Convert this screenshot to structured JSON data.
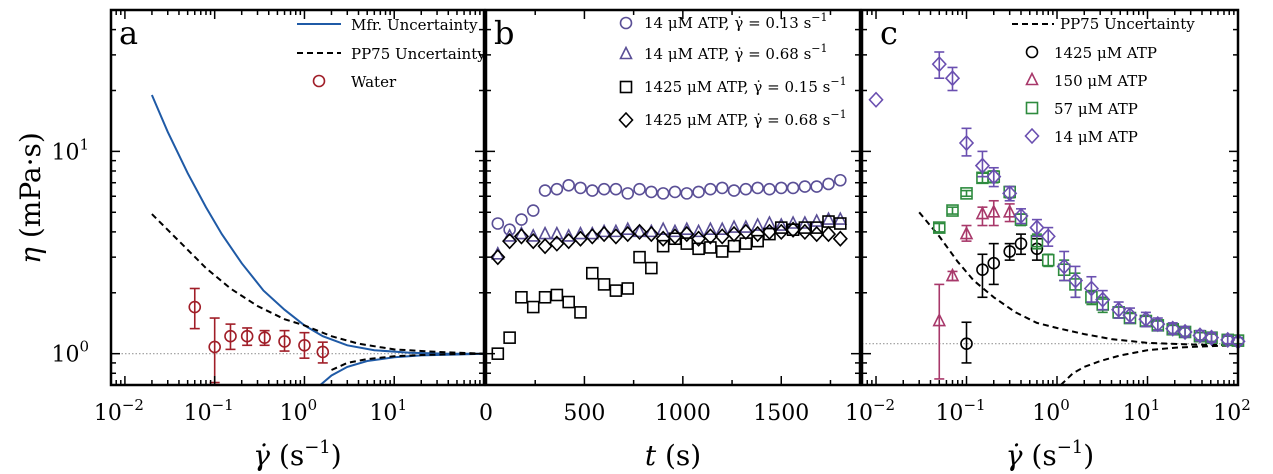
{
  "colors": {
    "water": "#a01e28",
    "mfr": "#1f5aa6",
    "black": "#000000",
    "purple": "#5a4f96",
    "magenta": "#a8386a",
    "green": "#2e8b3e",
    "violet": "#6a4fb0",
    "grey": "#9a9a9a"
  },
  "ylabel_parts": {
    "sym": "η",
    "unit": "(mPa·s)"
  },
  "ytick_labels": [
    {
      "base": "10",
      "exp": "0",
      "value": 1
    },
    {
      "base": "10",
      "exp": "1",
      "value": 10
    }
  ],
  "chart_data": [
    {
      "type": "scatter",
      "panel": "a",
      "xscale": "log",
      "yscale": "log",
      "xlim": [
        0.007,
        100
      ],
      "ylim": [
        0.7,
        50
      ],
      "xlabel_parts": {
        "sym": "γ̇",
        "unit": "(s",
        "exp": "−1",
        "close": ")"
      },
      "xtick_labels": [
        {
          "base": "10",
          "exp": "−2",
          "value": 0.01
        },
        {
          "base": "10",
          "exp": "−1",
          "value": 0.1
        },
        {
          "base": "10",
          "exp": "0",
          "value": 1
        },
        {
          "base": "10",
          "exp": "1",
          "value": 10
        }
      ],
      "legend": [
        "Mfr. Uncertainty",
        "PP75 Uncertainty",
        "Water"
      ],
      "series": [
        {
          "name": "Water",
          "marker": "circle",
          "x": [
            0.06,
            0.1,
            0.15,
            0.23,
            0.36,
            0.6,
            1.0,
            1.6
          ],
          "y": [
            1.7,
            1.08,
            1.22,
            1.22,
            1.2,
            1.15,
            1.1,
            1.02
          ],
          "ylo": [
            1.33,
            0.72,
            1.05,
            1.1,
            1.1,
            1.03,
            0.95,
            0.9
          ],
          "yhi": [
            2.1,
            1.5,
            1.4,
            1.34,
            1.3,
            1.3,
            1.27,
            1.14
          ]
        }
      ],
      "mfr_upper": {
        "x": [
          0.02,
          0.03,
          0.05,
          0.08,
          0.12,
          0.2,
          0.35,
          0.6,
          1.0,
          1.6,
          3,
          6,
          15,
          40,
          100
        ],
        "y": [
          19,
          12.5,
          7.8,
          5.3,
          3.9,
          2.8,
          2.05,
          1.65,
          1.38,
          1.22,
          1.1,
          1.04,
          1.01,
          1.0,
          1.0
        ]
      },
      "mfr_lower": {
        "x": [
          1.5,
          2,
          3,
          5,
          10,
          20,
          50,
          100
        ],
        "y": [
          0.7,
          0.78,
          0.86,
          0.92,
          0.96,
          0.98,
          0.99,
          1.0
        ]
      },
      "pp75_upper": {
        "x": [
          0.02,
          0.04,
          0.08,
          0.15,
          0.3,
          0.6,
          1.0,
          2,
          4,
          10,
          30,
          100
        ],
        "y": [
          4.9,
          3.6,
          2.65,
          2.1,
          1.72,
          1.48,
          1.38,
          1.22,
          1.12,
          1.05,
          1.02,
          1.0
        ]
      },
      "pp75_lower": {
        "x": [
          2,
          3,
          5,
          10,
          20,
          50,
          100
        ],
        "y": [
          0.83,
          0.9,
          0.94,
          0.97,
          0.985,
          0.995,
          1.0
        ]
      },
      "ref_y": 1.0
    },
    {
      "type": "scatter",
      "panel": "b",
      "xscale": "linear",
      "yscale": "log",
      "xlim": [
        0,
        1900
      ],
      "ylim": [
        0.7,
        50
      ],
      "xlabel_parts": {
        "sym": "t",
        "unit": "(s)"
      },
      "xtick_labels": [
        "0",
        "500",
        "1000",
        "1500"
      ],
      "xtick_values": [
        0,
        500,
        1000,
        1500
      ],
      "legend": [
        {
          "text": "14 μM ATP, γ̇ = 0.13 s",
          "sup": "−1"
        },
        {
          "text": "14 μM ATP, γ̇ = 0.68 s",
          "sup": "−1"
        },
        {
          "text": "1425 μM ATP, γ̇ = 0.15 s",
          "sup": "−1"
        },
        {
          "text": "1425 μM ATP, γ̇ = 0.68 s",
          "sup": "−1"
        }
      ],
      "series": [
        {
          "name": "14 μM ATP, γ̇ = 0.13 s−1",
          "marker": "circle",
          "x": [
            60,
            120,
            180,
            240,
            300,
            360,
            420,
            480,
            540,
            600,
            660,
            720,
            780,
            840,
            900,
            960,
            1020,
            1080,
            1140,
            1200,
            1260,
            1320,
            1380,
            1440,
            1500,
            1560,
            1620,
            1680,
            1740,
            1800
          ],
          "y": [
            4.4,
            4.1,
            4.6,
            5.1,
            6.4,
            6.5,
            6.8,
            6.6,
            6.4,
            6.5,
            6.5,
            6.2,
            6.5,
            6.3,
            6.2,
            6.3,
            6.2,
            6.3,
            6.5,
            6.6,
            6.4,
            6.5,
            6.6,
            6.5,
            6.6,
            6.6,
            6.7,
            6.7,
            6.9,
            7.2
          ]
        },
        {
          "name": "14 μM ATP, γ̇ = 0.68 s−1",
          "marker": "triangle",
          "x": [
            60,
            120,
            180,
            240,
            300,
            360,
            420,
            480,
            540,
            600,
            660,
            720,
            780,
            840,
            900,
            960,
            1020,
            1080,
            1140,
            1200,
            1260,
            1320,
            1380,
            1440,
            1500,
            1560,
            1620,
            1680,
            1740,
            1800
          ],
          "y": [
            3.1,
            3.8,
            3.9,
            3.8,
            3.9,
            3.9,
            3.8,
            3.9,
            3.9,
            4.0,
            4.0,
            4.1,
            4.0,
            4.0,
            4.1,
            4.0,
            4.1,
            4.0,
            4.1,
            4.1,
            4.2,
            4.2,
            4.3,
            4.4,
            4.3,
            4.4,
            4.4,
            4.5,
            4.6,
            4.6
          ]
        },
        {
          "name": "1425 μM ATP, γ̇ = 0.15 s−1",
          "marker": "square",
          "x": [
            60,
            120,
            180,
            240,
            300,
            360,
            420,
            480,
            540,
            600,
            660,
            720,
            780,
            840,
            900,
            960,
            1020,
            1080,
            1140,
            1200,
            1260,
            1320,
            1380,
            1440,
            1500,
            1560,
            1620,
            1680,
            1740,
            1800
          ],
          "y": [
            1.0,
            1.2,
            1.9,
            1.7,
            1.9,
            1.95,
            1.8,
            1.6,
            2.5,
            2.2,
            2.05,
            2.1,
            3.0,
            2.65,
            3.4,
            3.7,
            3.5,
            3.3,
            3.35,
            3.2,
            3.4,
            3.5,
            3.6,
            3.9,
            4.2,
            4.1,
            4.2,
            4.2,
            4.5,
            4.4
          ]
        },
        {
          "name": "1425 μM ATP, γ̇ = 0.68 s−1",
          "marker": "diamond",
          "x": [
            60,
            120,
            180,
            240,
            300,
            360,
            420,
            480,
            540,
            600,
            660,
            720,
            780,
            840,
            900,
            960,
            1020,
            1080,
            1140,
            1200,
            1260,
            1320,
            1380,
            1440,
            1500,
            1560,
            1620,
            1680,
            1740,
            1800
          ],
          "y": [
            3.0,
            3.6,
            3.8,
            3.6,
            3.4,
            3.5,
            3.6,
            3.7,
            3.8,
            3.9,
            3.8,
            3.9,
            4.0,
            3.9,
            3.7,
            3.8,
            3.9,
            3.7,
            3.8,
            3.8,
            3.9,
            4.0,
            3.9,
            4.0,
            4.0,
            4.1,
            4.0,
            3.9,
            3.9,
            3.7
          ]
        }
      ]
    },
    {
      "type": "scatter",
      "panel": "c",
      "xscale": "log",
      "yscale": "log",
      "xlim": [
        0.007,
        100
      ],
      "ylim": [
        0.7,
        50
      ],
      "xlabel_parts": {
        "sym": "γ̇",
        "unit": "(s",
        "exp": "−1",
        "close": ")"
      },
      "xtick_labels": [
        {
          "base": "10",
          "exp": "−2",
          "value": 0.01
        },
        {
          "base": "10",
          "exp": "−1",
          "value": 0.1
        },
        {
          "base": "10",
          "exp": "0",
          "value": 1
        },
        {
          "base": "10",
          "exp": "1",
          "value": 10
        },
        {
          "base": "10",
          "exp": "2",
          "value": 100
        }
      ],
      "legend": [
        "PP75 Uncertainty",
        "1425 μM ATP",
        "150 μM ATP",
        "57 μM ATP",
        "14 μM ATP"
      ],
      "series": [
        {
          "name": "1425 μM ATP",
          "marker": "circle",
          "x": [
            0.1,
            0.15,
            0.2,
            0.3,
            0.4,
            0.6
          ],
          "y": [
            1.12,
            2.6,
            2.8,
            3.2,
            3.5,
            3.3
          ],
          "ylo": [
            0.9,
            1.9,
            2.2,
            2.9,
            3.1,
            2.9
          ],
          "yhi": [
            1.43,
            3.1,
            3.5,
            3.5,
            3.9,
            3.7
          ]
        },
        {
          "name": "150 μM ATP",
          "marker": "triangle",
          "x": [
            0.05,
            0.07,
            0.1,
            0.15,
            0.2,
            0.3
          ],
          "y": [
            1.45,
            2.42,
            3.9,
            4.9,
            5.0,
            5.0
          ],
          "ylo": [
            0.75,
            2.3,
            3.6,
            4.3,
            4.3,
            4.5
          ],
          "yhi": [
            2.2,
            2.55,
            4.3,
            5.3,
            5.7,
            5.5
          ]
        },
        {
          "name": "57 μM ATP",
          "marker": "square",
          "x": [
            0.05,
            0.07,
            0.1,
            0.15,
            0.2,
            0.3,
            0.4,
            0.6,
            0.8,
            1.2,
            1.6,
            2.4,
            3.2,
            4.8,
            6.4,
            9.6,
            13,
            19,
            26,
            38,
            51,
            77,
            100
          ],
          "y": [
            4.2,
            5.1,
            6.2,
            7.4,
            7.5,
            6.3,
            4.6,
            3.6,
            2.9,
            2.6,
            2.2,
            1.9,
            1.75,
            1.6,
            1.5,
            1.45,
            1.38,
            1.32,
            1.28,
            1.22,
            1.2,
            1.17,
            1.16
          ],
          "ylo": [
            4.0,
            4.9,
            6.0,
            7.0,
            7.0,
            5.9,
            4.3,
            3.3,
            2.7,
            2.3,
            1.9,
            1.75,
            1.6,
            1.5,
            1.42,
            1.37,
            1.31,
            1.26,
            1.22,
            1.17,
            1.15,
            1.12,
            1.12
          ],
          "yhi": [
            4.4,
            5.3,
            6.4,
            7.8,
            8.0,
            6.7,
            4.9,
            3.9,
            3.1,
            2.9,
            2.5,
            2.05,
            1.9,
            1.7,
            1.58,
            1.53,
            1.45,
            1.38,
            1.34,
            1.27,
            1.25,
            1.22,
            1.2
          ]
        },
        {
          "name": "14 μM ATP",
          "marker": "diamond",
          "x": [
            0.01,
            0.05,
            0.07,
            0.1,
            0.15,
            0.2,
            0.3,
            0.4,
            0.6,
            0.8,
            1.2,
            1.6,
            2.4,
            3.2,
            4.8,
            6.4,
            9.6,
            13,
            19,
            26,
            38,
            51,
            77,
            100
          ],
          "y": [
            18,
            27,
            23,
            11,
            8.5,
            7.5,
            6.2,
            4.8,
            4.2,
            3.8,
            2.7,
            2.3,
            2.1,
            1.85,
            1.65,
            1.55,
            1.48,
            1.4,
            1.33,
            1.28,
            1.23,
            1.2,
            1.17,
            1.15
          ],
          "ylo": [
            18,
            23,
            20,
            9.5,
            7.5,
            6.7,
            5.7,
            4.4,
            3.8,
            3.4,
            2.3,
            1.9,
            1.8,
            1.65,
            1.5,
            1.42,
            1.36,
            1.3,
            1.25,
            1.21,
            1.16,
            1.14,
            1.12,
            1.11
          ],
          "yhi": [
            18,
            31,
            26,
            13,
            10,
            8.3,
            6.7,
            5.2,
            4.6,
            4.2,
            3.2,
            2.7,
            2.4,
            2.05,
            1.8,
            1.68,
            1.6,
            1.5,
            1.42,
            1.36,
            1.3,
            1.27,
            1.23,
            1.2
          ]
        }
      ],
      "pp75_upper": {
        "x": [
          0.03,
          0.05,
          0.08,
          0.12,
          0.2,
          0.35,
          0.6,
          1.0,
          2,
          4,
          10,
          30,
          100
        ],
        "y": [
          5.0,
          3.8,
          2.85,
          2.3,
          1.9,
          1.6,
          1.42,
          1.34,
          1.25,
          1.18,
          1.13,
          1.11,
          1.1
        ]
      },
      "pp75_lower": {
        "x": [
          1.1,
          1.5,
          2,
          3,
          5,
          10,
          20,
          50,
          100
        ],
        "y": [
          0.7,
          0.8,
          0.86,
          0.92,
          0.98,
          1.04,
          1.07,
          1.09,
          1.1
        ]
      },
      "ref_y": 1.12
    }
  ]
}
